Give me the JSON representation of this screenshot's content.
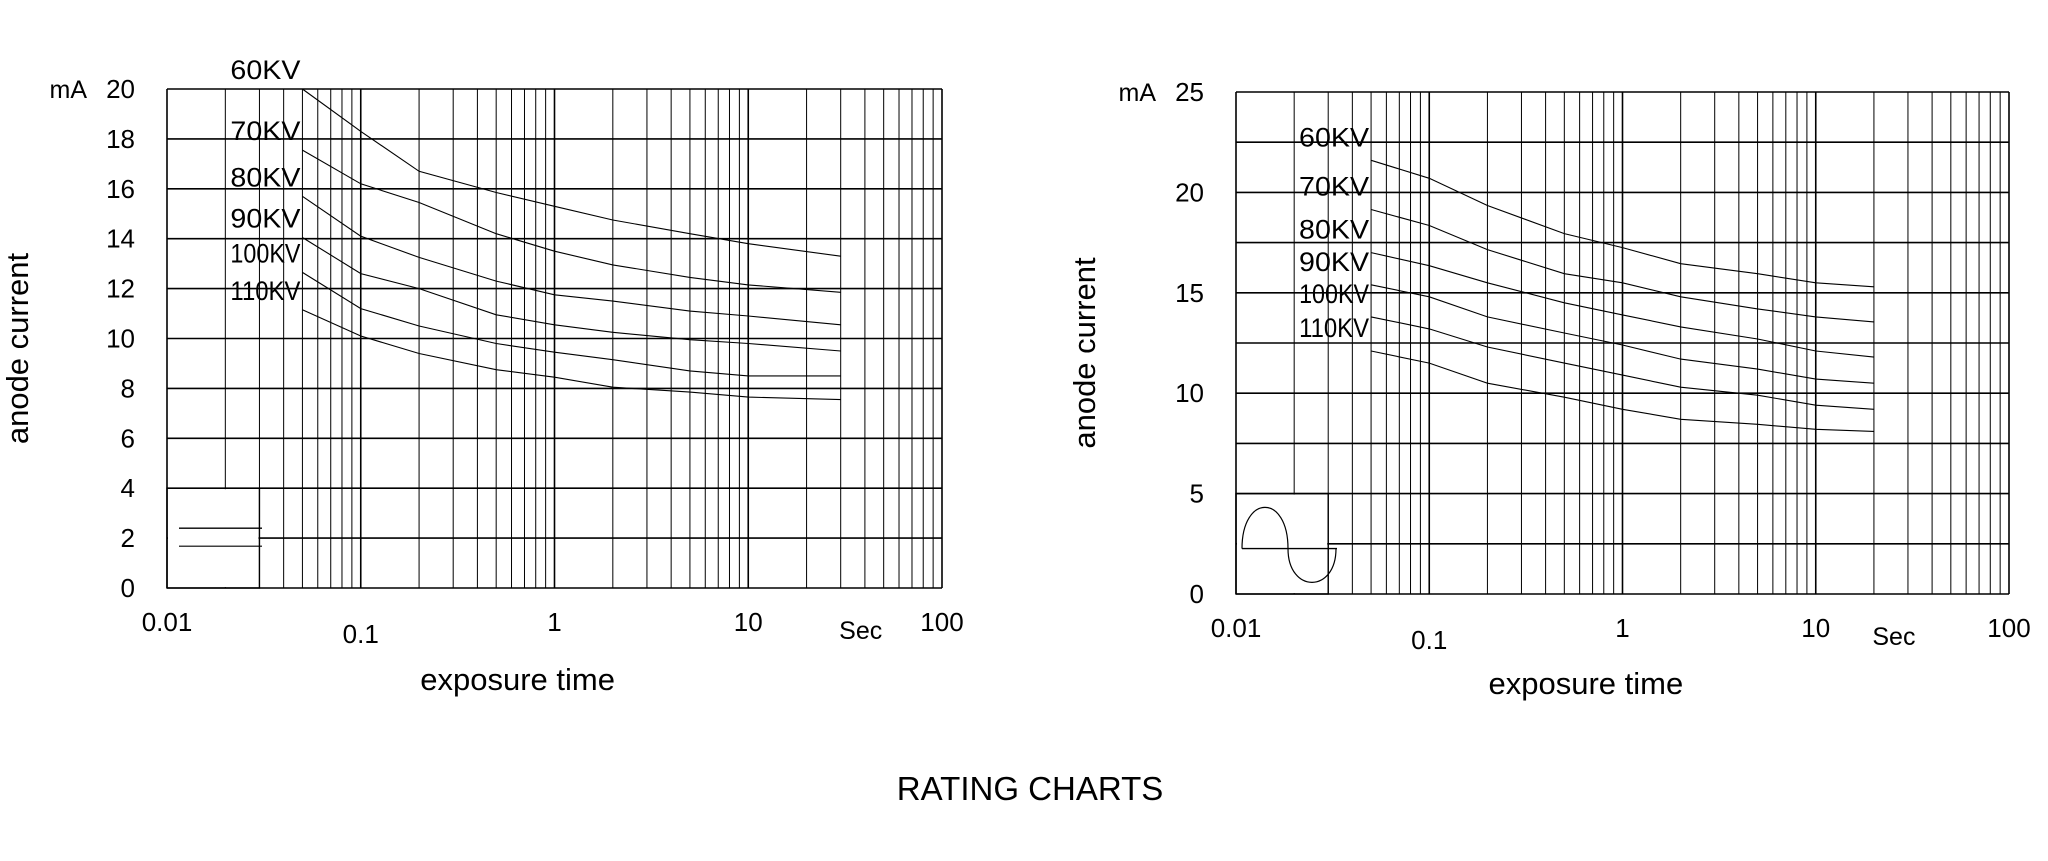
{
  "title": "RATING CHARTS",
  "chart_data": [
    {
      "type": "line",
      "xlabel": "exposure time",
      "ylabel": "anode current",
      "y_unit": "mA",
      "x_unit": "Sec",
      "x_scale": "log",
      "xlim": [
        0.01,
        100
      ],
      "ylim": [
        0,
        20
      ],
      "xtick_labels": [
        "0.01",
        "0.1",
        "1",
        "10",
        "100"
      ],
      "yticks": [
        0,
        2,
        4,
        6,
        8,
        10,
        12,
        14,
        16,
        18,
        20
      ],
      "grid": true,
      "legend_symbol": "parallel-lines-icon",
      "x": [
        0.05,
        0.1,
        0.2,
        0.5,
        1,
        2,
        5,
        10,
        30
      ],
      "series": [
        {
          "name": "60KV",
          "values": [
            20.0,
            18.3,
            16.7,
            15.85,
            15.3,
            14.75,
            14.2,
            13.8,
            13.3
          ]
        },
        {
          "name": "70KV",
          "values": [
            17.55,
            16.2,
            15.45,
            14.2,
            13.5,
            12.95,
            12.45,
            12.15,
            11.85
          ]
        },
        {
          "name": "80KV",
          "values": [
            15.7,
            14.1,
            13.25,
            12.3,
            11.75,
            11.5,
            11.1,
            10.9,
            10.55
          ]
        },
        {
          "name": "90KV",
          "values": [
            14.05,
            12.6,
            12.0,
            10.95,
            10.55,
            10.25,
            9.95,
            9.8,
            9.5
          ]
        },
        {
          "name": "100KV",
          "values": [
            12.65,
            11.2,
            10.5,
            9.8,
            9.45,
            9.15,
            8.7,
            8.5,
            8.5
          ]
        },
        {
          "name": "110KV",
          "values": [
            11.15,
            10.1,
            9.4,
            8.75,
            8.45,
            8.05,
            7.85,
            7.65,
            7.55
          ]
        }
      ]
    },
    {
      "type": "line",
      "xlabel": "exposure time",
      "ylabel": "anode current",
      "y_unit": "mA",
      "x_unit": "Sec",
      "x_scale": "log",
      "xlim": [
        0.01,
        100
      ],
      "ylim": [
        0,
        25
      ],
      "xtick_labels": [
        "0.01",
        "0.1",
        "1",
        "10",
        "100"
      ],
      "yticks": [
        0,
        5,
        10,
        15,
        20,
        25
      ],
      "grid": true,
      "legend_symbol": "sine-wave-icon",
      "x": [
        0.05,
        0.1,
        0.2,
        0.5,
        1,
        2,
        5,
        10,
        20
      ],
      "series": [
        {
          "name": "60KV",
          "values": [
            21.6,
            20.7,
            19.35,
            17.95,
            17.25,
            16.45,
            15.95,
            15.5,
            15.3
          ]
        },
        {
          "name": "70KV",
          "values": [
            19.15,
            18.35,
            17.15,
            15.95,
            15.5,
            14.8,
            14.2,
            13.8,
            13.55
          ]
        },
        {
          "name": "80KV",
          "values": [
            17.0,
            16.35,
            15.5,
            14.5,
            13.9,
            13.3,
            12.7,
            12.1,
            11.8
          ]
        },
        {
          "name": "90KV",
          "values": [
            15.4,
            14.8,
            13.8,
            13.0,
            12.4,
            11.7,
            11.2,
            10.7,
            10.5
          ]
        },
        {
          "name": "100KV",
          "values": [
            13.8,
            13.2,
            12.3,
            11.5,
            10.9,
            10.3,
            9.9,
            9.4,
            9.2
          ]
        },
        {
          "name": "110KV",
          "values": [
            12.1,
            11.5,
            10.5,
            9.8,
            9.2,
            8.7,
            8.45,
            8.2,
            8.1
          ]
        }
      ]
    }
  ]
}
